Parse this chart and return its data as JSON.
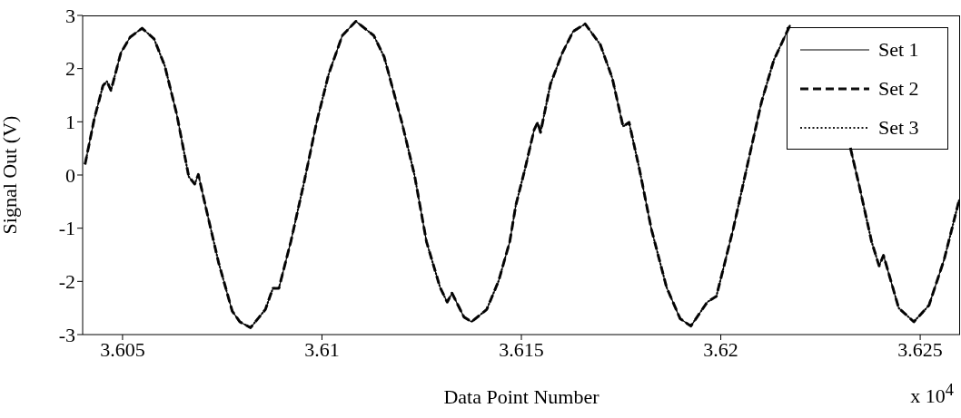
{
  "chart_data": {
    "type": "line",
    "xlabel": "Data Point Number",
    "ylabel": "Signal Out (V)",
    "annotations": [
      "x 10$^{4}$"
    ],
    "x": [
      3.60406,
      3.60429,
      3.60451,
      3.60461,
      3.60471,
      3.60496,
      3.60519,
      3.60549,
      3.60579,
      3.60606,
      3.60636,
      3.60666,
      3.60681,
      3.6069,
      3.60711,
      3.60741,
      3.60775,
      3.60794,
      3.60821,
      3.60858,
      3.60877,
      3.60892,
      3.60922,
      3.60956,
      3.60986,
      3.61017,
      3.61051,
      3.61085,
      3.6113,
      3.61156,
      3.61201,
      3.61232,
      3.61262,
      3.61296,
      3.61314,
      3.61326,
      3.61356,
      3.61375,
      3.61413,
      3.61443,
      3.61471,
      3.61486,
      3.61509,
      3.61532,
      3.61541,
      3.61548,
      3.61573,
      3.61603,
      3.6163,
      3.6166,
      3.61698,
      3.61728,
      3.61755,
      3.6177,
      3.61796,
      3.61826,
      3.61864,
      3.61898,
      3.61925,
      3.61966,
      3.61989,
      3.62031,
      3.62068,
      3.62102,
      3.62133,
      3.62174,
      3.6225,
      3.62325,
      3.62348,
      3.62378,
      3.62397,
      3.62408,
      3.62446,
      3.62484,
      3.62522,
      3.6256,
      3.62598
    ],
    "series": [
      {
        "name": "Set 1",
        "color": "#000000",
        "line_style": "solid",
        "values": [
          0.2,
          1.05,
          1.68,
          1.76,
          1.59,
          2.3,
          2.59,
          2.76,
          2.56,
          2.05,
          1.14,
          -0.03,
          -0.17,
          0.01,
          -0.68,
          -1.65,
          -2.56,
          -2.76,
          -2.87,
          -2.53,
          -2.13,
          -2.13,
          -1.25,
          -0.11,
          0.97,
          1.9,
          2.62,
          2.89,
          2.62,
          2.22,
          0.97,
          0,
          -1.25,
          -2.11,
          -2.39,
          -2.22,
          -2.67,
          -2.76,
          -2.53,
          -1.99,
          -1.25,
          -0.57,
          0.11,
          0.85,
          0.99,
          0.8,
          1.71,
          2.3,
          2.7,
          2.84,
          2.45,
          1.82,
          0.91,
          0.99,
          0.11,
          -1.02,
          -2.11,
          -2.7,
          -2.84,
          -2.39,
          -2.28,
          -1.02,
          0.23,
          1.37,
          2.16,
          2.82,
          null,
          0.51,
          -0.23,
          -1.25,
          -1.71,
          -1.51,
          -2.5,
          -2.76,
          -2.45,
          -1.59,
          -0.46
        ]
      },
      {
        "name": "Set 2",
        "color": "#0d0d0d",
        "line_style": "dashed",
        "values": [
          0.2,
          1.05,
          1.68,
          1.76,
          1.59,
          2.3,
          2.59,
          2.76,
          2.56,
          2.05,
          1.14,
          -0.03,
          -0.17,
          0.01,
          -0.68,
          -1.65,
          -2.56,
          -2.76,
          -2.87,
          -2.53,
          -2.13,
          -2.13,
          -1.25,
          -0.11,
          0.97,
          1.9,
          2.62,
          2.89,
          2.62,
          2.22,
          0.97,
          0,
          -1.25,
          -2.11,
          -2.39,
          -2.22,
          -2.67,
          -2.76,
          -2.53,
          -1.99,
          -1.25,
          -0.57,
          0.11,
          0.85,
          0.99,
          0.8,
          1.71,
          2.3,
          2.7,
          2.84,
          2.45,
          1.82,
          0.91,
          0.99,
          0.11,
          -1.02,
          -2.11,
          -2.7,
          -2.84,
          -2.39,
          -2.28,
          -1.02,
          0.23,
          1.37,
          2.16,
          2.82,
          null,
          0.51,
          -0.23,
          -1.25,
          -1.71,
          -1.51,
          -2.5,
          -2.76,
          -2.45,
          -1.59,
          -0.46
        ]
      },
      {
        "name": "Set 3",
        "color": "#1a1a1a",
        "line_style": "dotted",
        "values": [
          0.2,
          1.05,
          1.68,
          1.76,
          1.59,
          2.3,
          2.59,
          2.76,
          2.56,
          2.05,
          1.14,
          -0.03,
          -0.17,
          0.01,
          -0.68,
          -1.65,
          -2.56,
          -2.76,
          -2.87,
          -2.53,
          -2.13,
          -2.13,
          -1.25,
          -0.11,
          0.97,
          1.9,
          2.62,
          2.89,
          2.62,
          2.22,
          0.97,
          0,
          -1.25,
          -2.11,
          -2.39,
          -2.22,
          -2.67,
          -2.76,
          -2.53,
          -1.99,
          -1.25,
          -0.57,
          0.11,
          0.85,
          0.99,
          0.8,
          1.71,
          2.3,
          2.7,
          2.84,
          2.45,
          1.82,
          0.91,
          0.99,
          0.11,
          -1.02,
          -2.11,
          -2.7,
          -2.84,
          -2.39,
          -2.28,
          -1.02,
          0.23,
          1.37,
          2.16,
          2.82,
          null,
          0.51,
          -0.23,
          -1.25,
          -1.71,
          -1.51,
          -2.5,
          -2.76,
          -2.45,
          -1.59,
          -0.46
        ]
      }
    ],
    "xlim": [
      3.604,
      3.626
    ],
    "xticks": [
      3.605,
      3.61,
      3.615,
      3.62,
      3.625
    ],
    "ylim": [
      -3,
      3
    ],
    "yticks": [
      -3,
      -2,
      -1,
      0,
      1,
      2,
      3
    ],
    "grid": false,
    "legend": "top right",
    "marker": "none"
  }
}
